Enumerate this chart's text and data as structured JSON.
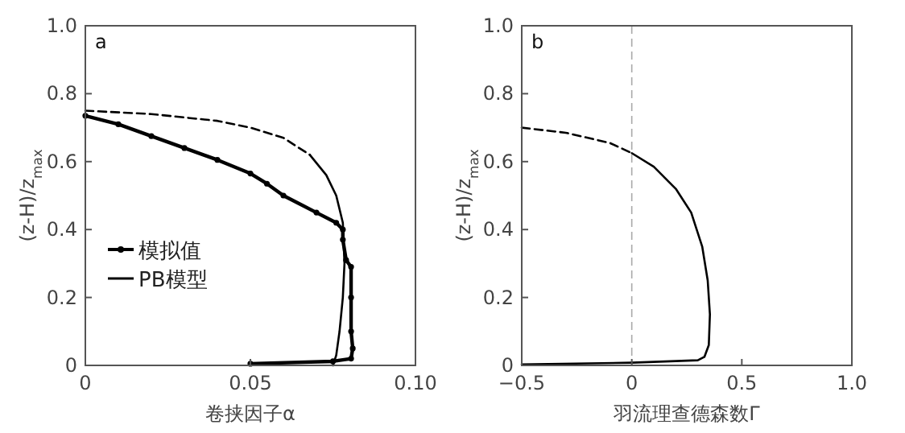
{
  "chart_data": [
    {
      "type": "line",
      "xlabel": "卷挟因子α",
      "ylabel": "(z-H)/z$_{max}$",
      "xlim": [
        0,
        0.1
      ],
      "ylim": [
        0,
        1
      ],
      "xticks": [
        0,
        0.05,
        {
          "value": 0.1,
          "label": "0.10"
        }
      ],
      "yticks": [
        0,
        0.2,
        0.4,
        0.6,
        0.8,
        {
          "value": 1,
          "label": "1.0"
        }
      ],
      "grid": false,
      "legend": "bottom left",
      "annotations": [
        "a"
      ],
      "series": [
        {
          "name": "模拟值",
          "color": "#000000",
          "marker": "circle",
          "line_style": "solid",
          "x": [
            0.05,
            0.075,
            0.0805,
            0.081,
            0.0805,
            0.0805,
            0.0805,
            0.079,
            0.078,
            0.078,
            0.076,
            0.07,
            0.06,
            0.055,
            0.05,
            0.04,
            0.03,
            0.02,
            0.01,
            0
          ],
          "values": [
            0.005,
            0.012,
            0.02,
            0.05,
            0.1,
            0.2,
            0.29,
            0.31,
            0.37,
            0.4,
            0.42,
            0.45,
            0.5,
            0.535,
            0.565,
            0.605,
            0.64,
            0.675,
            0.71,
            0.735
          ]
        },
        {
          "name": "PB模型",
          "color": "#000000",
          "marker": "none",
          "line_style": "solid",
          "x": [
            0.068,
            0.073,
            0.076,
            0.078,
            0.0785,
            0.078,
            0.077,
            0.076,
            0.075
          ],
          "values": [
            0.62,
            0.56,
            0.5,
            0.42,
            0.3,
            0.2,
            0.1,
            0.03,
            0
          ]
        },
        {
          "color": "#000000",
          "marker": "none",
          "line_style": "dashed",
          "x": [
            0,
            0.02,
            0.04,
            0.05,
            0.06,
            0.068
          ],
          "values": [
            0.75,
            0.74,
            0.72,
            0.7,
            0.67,
            0.62
          ]
        }
      ]
    },
    {
      "type": "line",
      "xlabel": "羽流理查德森数Γ",
      "ylabel": "(z-H)/z$_{max}$",
      "xlim": [
        -0.5,
        1
      ],
      "ylim": [
        0,
        1
      ],
      "xticks": [
        {
          "value": -0.5,
          "label": "−0.5"
        },
        0,
        0.5,
        {
          "value": 1,
          "label": "1.0"
        }
      ],
      "yticks": [
        0,
        0.2,
        0.4,
        0.6,
        0.8,
        {
          "value": 1,
          "label": "1.0"
        }
      ],
      "grid": false,
      "annotations": [
        "b"
      ],
      "ref_lines": [
        {
          "axis": "x",
          "value": 0,
          "color": "#aaaaaa",
          "line_style": "dashed"
        }
      ],
      "series": [
        {
          "color": "#000000",
          "marker": "none",
          "line_style": "dashed",
          "x": [
            -0.5,
            -0.3,
            -0.1,
            0
          ],
          "values": [
            0.7,
            0.685,
            0.655,
            0.625
          ]
        },
        {
          "color": "#000000",
          "marker": "none",
          "line_style": "solid",
          "x": [
            0,
            0.1,
            0.2,
            0.27,
            0.32,
            0.345,
            0.355,
            0.35,
            0.33,
            0.3,
            0,
            -0.5
          ],
          "values": [
            0.625,
            0.585,
            0.52,
            0.45,
            0.35,
            0.25,
            0.15,
            0.06,
            0.025,
            0.015,
            0.008,
            0.003
          ]
        }
      ]
    }
  ]
}
